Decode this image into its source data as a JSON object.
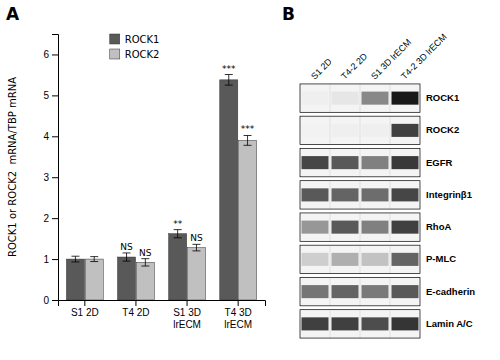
{
  "chart_data": [
    {
      "type": "bar",
      "title": "A",
      "ylabel": "ROCK1 or ROCK2  mRNA/TBP mRNA",
      "categories": [
        "S1 2D",
        "T4 2D",
        "S1 3D\nlrECM",
        "T4 3D\nlrECM"
      ],
      "series": [
        {
          "name": "ROCK1",
          "color": "#595959",
          "values": [
            1.0,
            1.05,
            1.62,
            5.38
          ],
          "errors": [
            0.07,
            0.1,
            0.1,
            0.13
          ],
          "annotations": [
            null,
            "NS",
            "**",
            "***"
          ]
        },
        {
          "name": "ROCK2",
          "color": "#c0c0c0",
          "values": [
            1.0,
            0.92,
            1.28,
            3.9
          ],
          "errors": [
            0.06,
            0.09,
            0.08,
            0.12
          ],
          "annotations": [
            null,
            "NS",
            "NS",
            "***"
          ]
        }
      ],
      "ylim": [
        0,
        6.5
      ],
      "yticks": [
        0,
        1,
        2,
        3,
        4,
        5,
        6
      ],
      "legend": "upper left"
    },
    {
      "type": "heatmap",
      "title": "B",
      "x": [
        "S1 2D",
        "T4-2 2D",
        "S1 3D lrECM",
        "T4-2 3D lrECM"
      ],
      "y": [
        "ROCK1",
        "ROCK2",
        "EGFR",
        "Integrinβ1",
        "RhoA",
        "P-MLC",
        "E-cadherin",
        "Lamin A/C"
      ],
      "values": [
        [
          0.12,
          0.18,
          0.55,
          0.92
        ],
        [
          0.1,
          0.12,
          0.12,
          0.8
        ],
        [
          0.78,
          0.72,
          0.58,
          0.82
        ],
        [
          0.72,
          0.68,
          0.65,
          0.78
        ],
        [
          0.5,
          0.72,
          0.58,
          0.8
        ],
        [
          0.3,
          0.42,
          0.35,
          0.68
        ],
        [
          0.62,
          0.68,
          0.6,
          0.72
        ],
        [
          0.8,
          0.8,
          0.76,
          0.83
        ]
      ]
    }
  ]
}
